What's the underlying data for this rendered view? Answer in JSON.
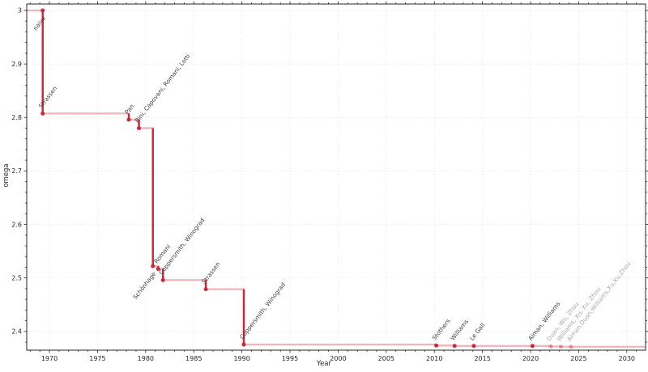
{
  "figure": {
    "xlabel": "Year",
    "ylabel": "omega"
  },
  "colors": {
    "line_solid": "#cc2936",
    "line_light": "rgba(204,41,54,0.33)",
    "marker": "#cc2936",
    "marker_faded": "rgba(204,41,54,0.38)",
    "label": "#3c3c3c",
    "label_faded": "#a8a8a8",
    "axis": "#262626",
    "grid": "#e3e3e3",
    "background": "#ffffff"
  },
  "chart_data": {
    "type": "line",
    "subtype": "step",
    "title": "",
    "xlabel": "Year",
    "ylabel": "omega",
    "xlim": [
      1967.64,
      2031.95
    ],
    "ylim": [
      2.365,
      3.012
    ],
    "x_ticks": [
      1970,
      1975,
      1980,
      1985,
      1990,
      1995,
      2000,
      2005,
      2010,
      2015,
      2020,
      2025,
      2030
    ],
    "x_minor_step": 1,
    "y_ticks": [
      2.4,
      2.5,
      2.6,
      2.7,
      2.8,
      2.9,
      3.0
    ],
    "y_tick_labels": [
      "2.4",
      "2.5",
      "2.6",
      "2.7",
      "2.8",
      "2.9",
      "3"
    ],
    "y_minor_step": 0.02,
    "grid": true,
    "legend": false,
    "start_omega": 3.0,
    "points": [
      {
        "x": 1969.3,
        "omega": 3.0,
        "label": "naive",
        "faded": false,
        "label_side": "below"
      },
      {
        "x": 1969.3,
        "omega": 2.8074,
        "label": "Strassen",
        "faded": false,
        "label_side": "above"
      },
      {
        "x": 1978.25,
        "omega": 2.796,
        "label": "Pan",
        "faded": false,
        "label_side": "above"
      },
      {
        "x": 1979.3,
        "omega": 2.78,
        "label": "Bini, Capovani, Romani, Lotti",
        "faded": false,
        "label_side": "above"
      },
      {
        "x": 1980.75,
        "omega": 2.522,
        "label": "Schönhage",
        "faded": false,
        "label_side": "below"
      },
      {
        "x": 1981.3,
        "omega": 2.517,
        "label": "Romani",
        "faded": false,
        "label_side": "above"
      },
      {
        "x": 1981.8,
        "omega": 2.496,
        "label": "Coppersmith, Winograd",
        "faded": false,
        "label_side": "above"
      },
      {
        "x": 1986.25,
        "omega": 2.479,
        "label": "Strassen",
        "faded": false,
        "label_side": "above"
      },
      {
        "x": 1990.2,
        "omega": 2.3755,
        "label": "Coppersmith, Winograd",
        "faded": false,
        "label_side": "above"
      },
      {
        "x": 2010.2,
        "omega": 2.3737,
        "label": "Stothers",
        "faded": false,
        "label_side": "above"
      },
      {
        "x": 2012.1,
        "omega": 2.3729,
        "label": "Williams",
        "faded": false,
        "label_side": "above"
      },
      {
        "x": 2014.1,
        "omega": 2.37287,
        "label": "Le Gall",
        "faded": false,
        "label_side": "above"
      },
      {
        "x": 2020.2,
        "omega": 2.37286,
        "label": "Alman, Williams",
        "faded": false,
        "label_side": "above"
      },
      {
        "x": 2022.1,
        "omega": 2.371866,
        "label": "Duan, Wu, Zhou",
        "faded": true,
        "label_side": "above"
      },
      {
        "x": 2023.15,
        "omega": 2.371552,
        "label": "Williams, Xu, Xu, Zhou",
        "faded": true,
        "label_side": "above"
      },
      {
        "x": 2024.2,
        "omega": 2.371339,
        "label": "Alman,Duan,Williams,Xu,Xu,Zhou",
        "faded": true,
        "label_side": "above"
      }
    ]
  }
}
